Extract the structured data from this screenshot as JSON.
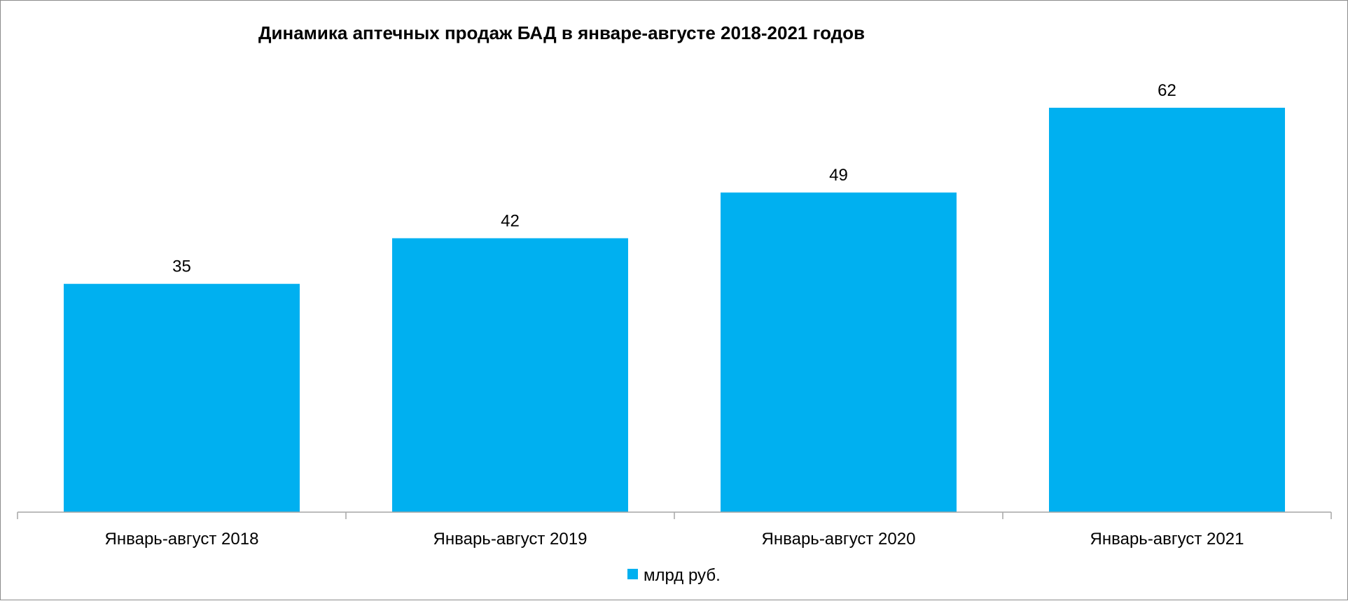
{
  "chart_data": {
    "type": "bar",
    "title": "Динамика аптечных продаж БАД в январе-августе 2018-2021 годов",
    "categories": [
      "Январь-август 2018",
      "Январь-август 2019",
      "Январь-август 2020",
      "Январь-август 2021"
    ],
    "series": [
      {
        "name": "млрд руб.",
        "values": [
          35,
          42,
          49,
          62
        ],
        "color": "#00b0f0"
      }
    ],
    "data_labels": [
      "35",
      "42",
      "49",
      "62"
    ],
    "xlabel": "",
    "ylabel": "",
    "ylim": [
      0,
      70
    ],
    "y_axis_visible": false,
    "grid": false,
    "legend_position": "bottom",
    "axis_color": "#a6a6a6"
  }
}
